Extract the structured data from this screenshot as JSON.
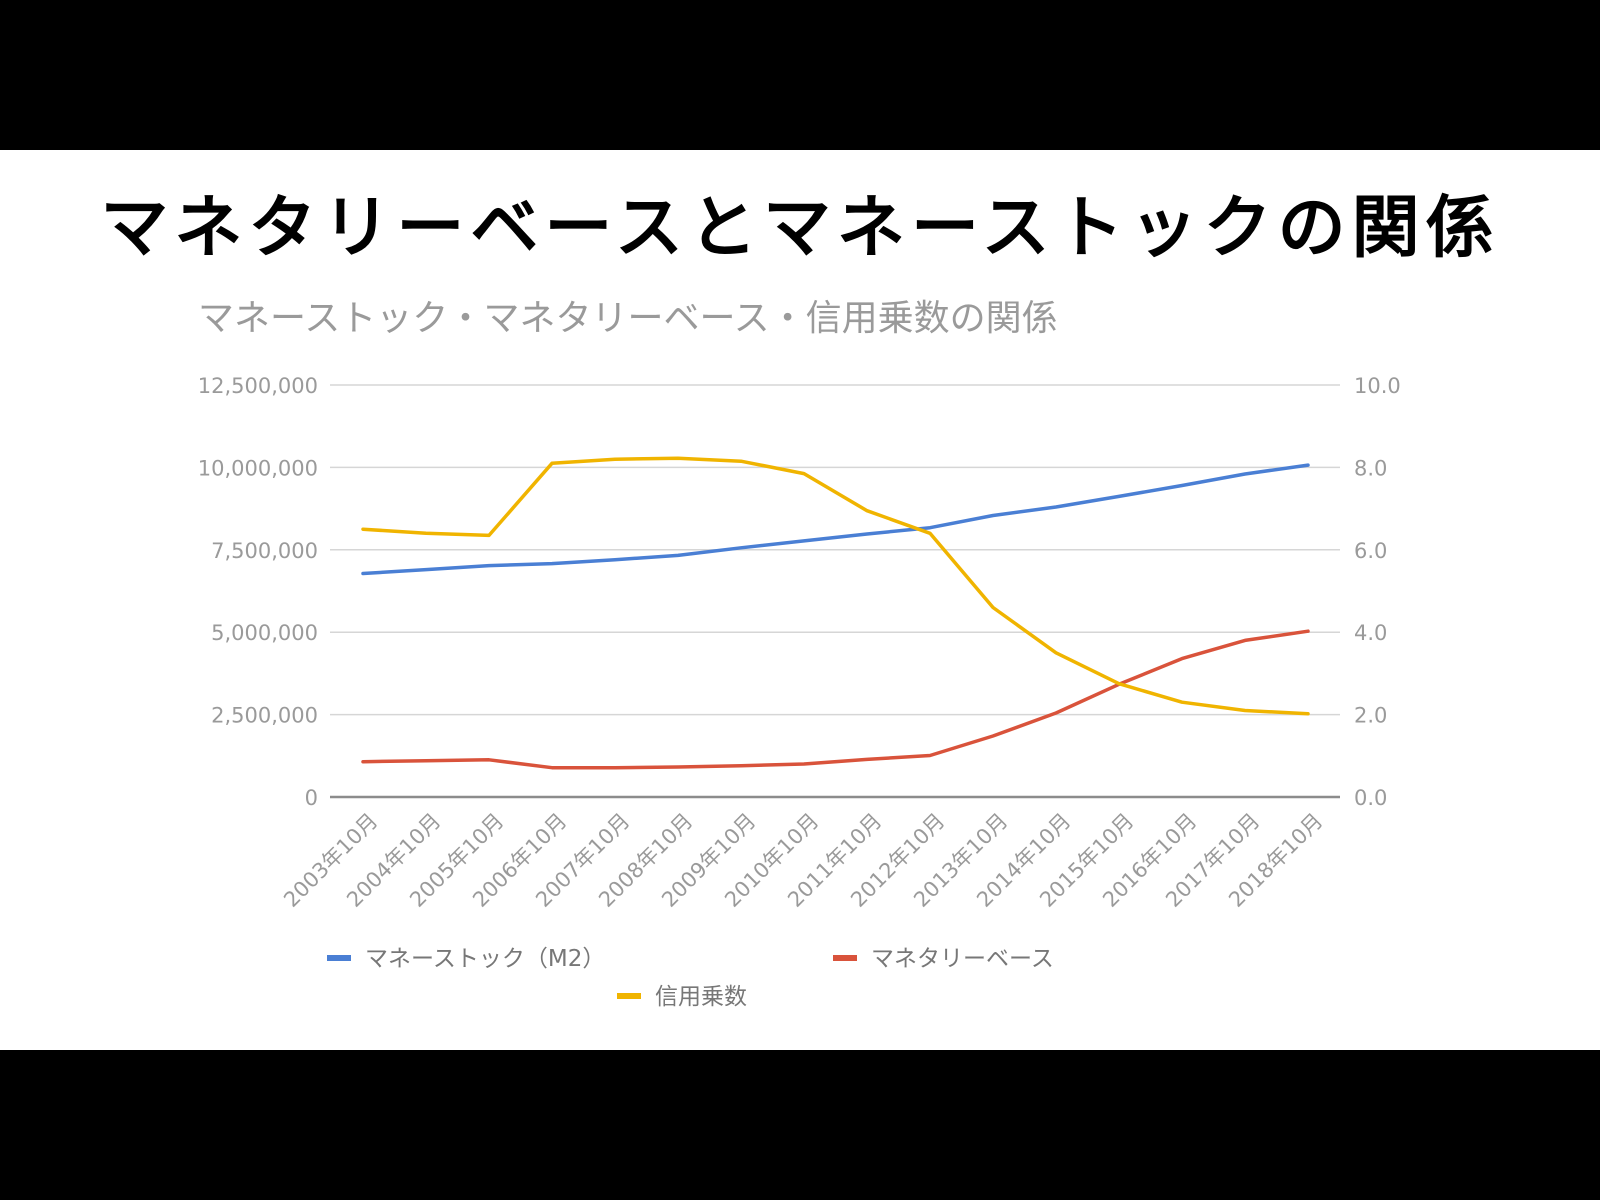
{
  "slide": {
    "title": "マネタリーベースとマネーストックの関係"
  },
  "chart_data": {
    "type": "line",
    "title": "マネーストック・マネタリーベース・信用乗数の関係",
    "categories": [
      "2003年10月",
      "2004年10月",
      "2005年10月",
      "2006年10月",
      "2007年10月",
      "2008年10月",
      "2009年10月",
      "2010年10月",
      "2011年10月",
      "2012年10月",
      "2013年10月",
      "2014年10月",
      "2015年10月",
      "2016年10月",
      "2017年10月",
      "2018年10月"
    ],
    "y_left": {
      "ylim": [
        0,
        12500000
      ],
      "ticks": [
        0,
        2500000,
        5000000,
        7500000,
        10000000,
        12500000
      ],
      "tick_labels": [
        "0",
        "2,500,000",
        "5,000,000",
        "7,500,000",
        "10,000,000",
        "12,500,000"
      ]
    },
    "y_right": {
      "ylim": [
        0,
        10
      ],
      "ticks": [
        0,
        2,
        4,
        6,
        8,
        10
      ],
      "tick_labels": [
        "0.0",
        "2.0",
        "4.0",
        "6.0",
        "8.0",
        "10.0"
      ]
    },
    "grid": true,
    "legend_position": "bottom",
    "series": [
      {
        "name": "マネーストック（M2）",
        "axis": "left",
        "color": "#4a7fd4",
        "values": [
          6780000,
          6900000,
          7020000,
          7080000,
          7200000,
          7330000,
          7560000,
          7770000,
          7980000,
          8170000,
          8540000,
          8800000,
          9120000,
          9450000,
          9800000,
          10070000
        ]
      },
      {
        "name": "マネタリーベース",
        "axis": "left",
        "color": "#d9533b",
        "values": [
          1070000,
          1100000,
          1130000,
          890000,
          890000,
          910000,
          950000,
          1000000,
          1140000,
          1260000,
          1850000,
          2550000,
          3420000,
          4200000,
          4750000,
          5030000
        ]
      },
      {
        "name": "信用乗数",
        "axis": "right",
        "color": "#f0b400",
        "values": [
          6.5,
          6.4,
          6.35,
          8.1,
          8.2,
          8.22,
          8.15,
          7.85,
          6.95,
          6.4,
          4.6,
          3.5,
          2.75,
          2.3,
          2.1,
          2.02
        ]
      }
    ]
  }
}
